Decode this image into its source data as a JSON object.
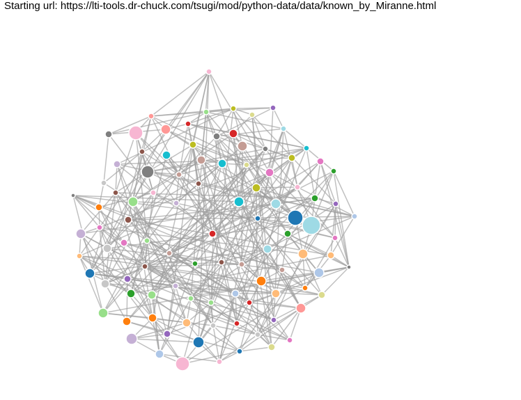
{
  "header": {
    "label": "Starting url: https://lti-tools.dr-chuck.com/tsugi/mod/python-data/data/known_by_Miranne.html"
  },
  "palette": [
    "#1f77b4",
    "#aec7e8",
    "#ff7f0e",
    "#ffbb78",
    "#2ca02c",
    "#98df8a",
    "#d62728",
    "#ff9896",
    "#9467bd",
    "#c5b0d5",
    "#8c564b",
    "#c49c94",
    "#e377c2",
    "#f7b6d2",
    "#7f7f7f",
    "#c7c7c7",
    "#bcbd22",
    "#dbdb8d",
    "#17becf",
    "#9edae5"
  ],
  "link_color": "#9e9e9e"
}
